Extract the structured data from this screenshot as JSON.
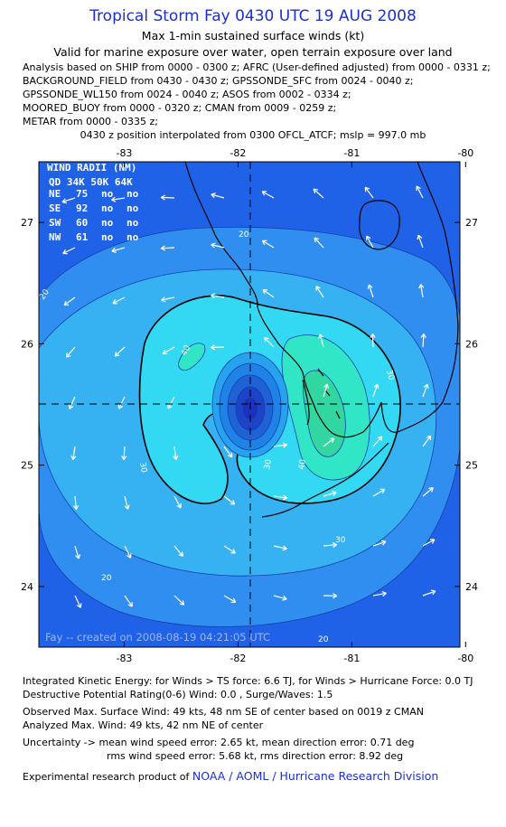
{
  "header": {
    "title": "Tropical Storm Fay 0430 UTC 19 AUG 2008",
    "subtitle1": "Max 1-min sustained surface winds (kt)",
    "subtitle2": "Valid for marine exposure over water, open terrain exposure over land",
    "analysis_lines": [
      "Analysis based on  SHIP from 0000 - 0300 z;  AFRC (User-defined adjusted) from 0000 - 0331 z;",
      "BACKGROUND_FIELD from 0430 - 0430 z;  GPSSONDE_SFC from 0024 - 0040 z;",
      "GPSSONDE_WL150 from 0024 - 0040 z;  ASOS from 0002 - 0334 z;",
      "MOORED_BUOY from 0000 - 0320 z;  CMAN from 0009 - 0259 z;",
      "METAR from 0000 - 0335 z;"
    ],
    "position_line": "0430 z position interpolated from 0300 OFCL_ATCF; mslp = 997.0 mb"
  },
  "map": {
    "lon_ticks": [
      "-83",
      "-82",
      "-81",
      "-80"
    ],
    "lat_ticks": [
      "27",
      "26",
      "25",
      "24"
    ],
    "center": {
      "lon": -81.9,
      "lat": 25.5
    },
    "extent": {
      "lon_min": -83.75,
      "lon_max": -80.05,
      "lat_min": 23.5,
      "lat_max": 27.5
    },
    "contour_labels": [
      "20",
      "20",
      "30",
      "30",
      "30",
      "40",
      "40",
      "20",
      "20",
      "30"
    ],
    "watermark": "Fay -- created on 2008-08-19 04:21:05 UTC",
    "colors": {
      "c0": "#1f62e8",
      "c20": "#2f8ef0",
      "c30": "#36b1f2",
      "c40": "#33d8f2",
      "c45": "#30e6c6",
      "c50": "#32d6a0",
      "core": "#1d2fbf"
    },
    "wind_radii": {
      "title": "WIND RADII (NM)",
      "header": "QD  34K 50K 64K",
      "rows": [
        {
          "q": "NE",
          "r34": "75",
          "r50": "no",
          "r64": "no"
        },
        {
          "q": "SE",
          "r34": "92",
          "r50": "no",
          "r64": "no"
        },
        {
          "q": "SW",
          "r34": "60",
          "r50": "no",
          "r64": "no"
        },
        {
          "q": "NW",
          "r34": "61",
          "r50": "no",
          "r64": "no"
        }
      ]
    }
  },
  "footer": {
    "ike": "Integrated Kinetic Energy:  for Winds > TS force: 6.6 TJ,  for Winds > Hurricane Force: 0.0 TJ",
    "dpr": "Destructive Potential Rating(0-6)   Wind: 0.0 , Surge/Waves: 1.5",
    "obs_max": "Observed Max. Surface Wind: 49 kts, 48 nm SE of center based on 0019 z CMAN",
    "ana_max": "Analyzed Max. Wind: 49 kts, 42 nm NE of center",
    "unc1": "Uncertainty -> mean wind speed error: 2.65 kt,   mean direction error: 0.71 deg",
    "unc2": "rms wind speed error: 5.68 kt,   rms direction error: 8.92 deg",
    "credit_prefix": "Experimental research product of",
    "credit_org": "NOAA / AOML / Hurricane Research Division"
  }
}
